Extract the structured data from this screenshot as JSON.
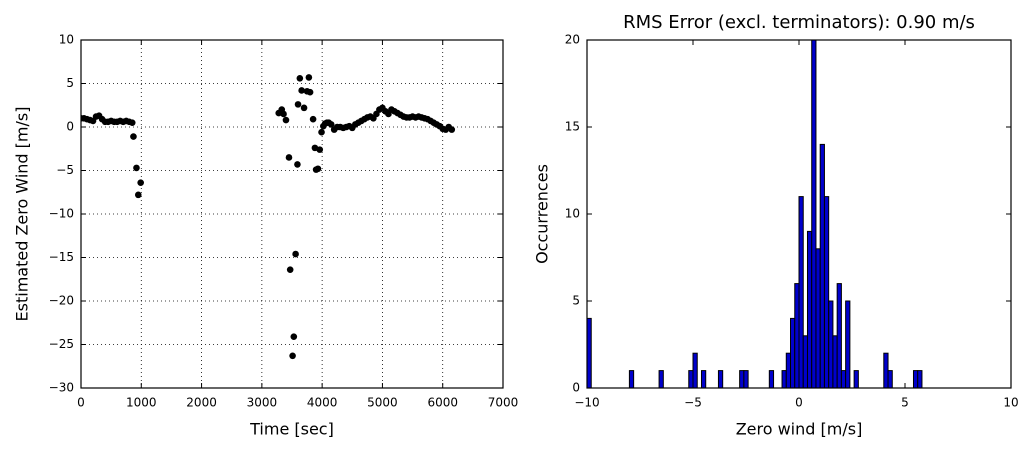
{
  "chart_data": [
    {
      "type": "scatter",
      "xlabel": "Time [sec]",
      "ylabel": "Estimated Zero Wind [m/s]",
      "color": "#000000",
      "grid": true,
      "xlim": [
        0,
        7000
      ],
      "xticks": [
        0,
        1000,
        2000,
        3000,
        4000,
        5000,
        6000,
        7000
      ],
      "ylim": [
        -30,
        10
      ],
      "yticks": [
        {
          "value": -30,
          "label": "−30"
        },
        {
          "value": -25,
          "label": "−25"
        },
        {
          "value": -20,
          "label": "−20"
        },
        {
          "value": -15,
          "label": "−15"
        },
        {
          "value": -10,
          "label": "−10"
        },
        {
          "value": -5,
          "label": "−5"
        },
        0,
        5,
        10
      ],
      "x": [
        0,
        50,
        100,
        150,
        200,
        250,
        300,
        350,
        400,
        450,
        500,
        550,
        600,
        650,
        700,
        750,
        800,
        850,
        870,
        920,
        950,
        990,
        3280,
        3330,
        3360,
        3400,
        3450,
        3470,
        3510,
        3530,
        3560,
        3590,
        3600,
        3630,
        3660,
        3700,
        3750,
        3780,
        3800,
        3850,
        3880,
        3900,
        3930,
        3960,
        3990,
        4020,
        4050,
        4080,
        4110,
        4150,
        4200,
        4250,
        4300,
        4350,
        4400,
        4450,
        4500,
        4550,
        4600,
        4650,
        4700,
        4750,
        4800,
        4850,
        4900,
        4950,
        5000,
        5050,
        5100,
        5150,
        5200,
        5250,
        5300,
        5350,
        5400,
        5450,
        5500,
        5550,
        5600,
        5650,
        5700,
        5750,
        5800,
        5850,
        5900,
        5950,
        6000,
        6050,
        6100,
        6150
      ],
      "values": [
        1.0,
        1.0,
        0.9,
        0.8,
        0.7,
        1.2,
        1.3,
        0.9,
        0.6,
        0.6,
        0.7,
        0.6,
        0.6,
        0.7,
        0.6,
        0.7,
        0.6,
        0.5,
        -1.1,
        -4.7,
        -7.8,
        -6.4,
        1.6,
        2.0,
        1.5,
        0.8,
        -3.5,
        -16.4,
        -26.3,
        -24.1,
        -14.6,
        -4.3,
        2.6,
        5.6,
        4.2,
        2.2,
        4.1,
        5.7,
        4.0,
        0.9,
        -2.4,
        -4.9,
        -4.8,
        -2.6,
        -0.6,
        0.1,
        0.4,
        0.5,
        0.5,
        0.3,
        -0.3,
        0.0,
        0.0,
        -0.1,
        0.0,
        0.1,
        -0.1,
        0.3,
        0.5,
        0.7,
        0.9,
        1.1,
        1.2,
        1.0,
        1.5,
        2.0,
        2.2,
        1.8,
        1.5,
        2.0,
        1.8,
        1.6,
        1.4,
        1.2,
        1.1,
        1.1,
        1.2,
        1.1,
        1.2,
        1.1,
        1.0,
        0.9,
        0.7,
        0.5,
        0.3,
        0.1,
        -0.2,
        -0.3,
        0.0,
        -0.3
      ]
    },
    {
      "type": "histogram",
      "title": "RMS Error (excl. terminators): 0.90 m/s",
      "xlabel": "Zero wind [m/s]",
      "ylabel": "Occurrences",
      "color": "#0000cc",
      "grid": false,
      "xlim": [
        -10,
        10
      ],
      "xticks": [
        {
          "value": -10,
          "label": "−10"
        },
        {
          "value": -5,
          "label": "−5"
        },
        0,
        5,
        10
      ],
      "ylim": [
        0,
        20
      ],
      "yticks": [
        0,
        5,
        10,
        15,
        20
      ],
      "bins": [
        -10,
        -9.8,
        -9.6,
        -9.4,
        -9.2,
        -9,
        -8.8,
        -8.6,
        -8.4,
        -8.2,
        -8,
        -7.8,
        -7.6,
        -7.4,
        -7.2,
        -7,
        -6.8,
        -6.6,
        -6.4,
        -6.2,
        -6,
        -5.8,
        -5.6,
        -5.4,
        -5.2,
        -5,
        -4.8,
        -4.6,
        -4.4,
        -4.2,
        -4,
        -3.8,
        -3.6,
        -3.4,
        -3.2,
        -3,
        -2.8,
        -2.6,
        -2.4,
        -2.2,
        -2,
        -1.8,
        -1.6,
        -1.4,
        -1.2,
        -1,
        -0.8,
        -0.6,
        -0.4,
        -0.2,
        0,
        0.2,
        0.4,
        0.6,
        0.8,
        1,
        1.2,
        1.4,
        1.6,
        1.8,
        2,
        2.2,
        2.4,
        2.6,
        2.8,
        3,
        3.2,
        3.4,
        3.6,
        3.8,
        4,
        4.2,
        4.4,
        4.6,
        4.8,
        5,
        5.2,
        5.4,
        5.6,
        5.8,
        6
      ],
      "values": [
        4,
        0,
        0,
        0,
        0,
        0,
        0,
        0,
        0,
        0,
        1,
        0,
        0,
        0,
        0,
        0,
        0,
        1,
        0,
        0,
        0,
        0,
        0,
        0,
        1,
        2,
        0,
        1,
        0,
        0,
        0,
        1,
        0,
        0,
        0,
        0,
        1,
        1,
        0,
        0,
        0,
        0,
        0,
        1,
        0,
        0,
        1,
        2,
        4,
        6,
        11,
        3,
        9,
        20,
        8,
        14,
        11,
        5,
        3,
        6,
        1,
        5,
        0,
        1,
        0,
        0,
        0,
        0,
        0,
        0,
        2,
        1,
        0,
        0,
        0,
        0,
        0,
        1,
        1,
        0
      ]
    }
  ]
}
